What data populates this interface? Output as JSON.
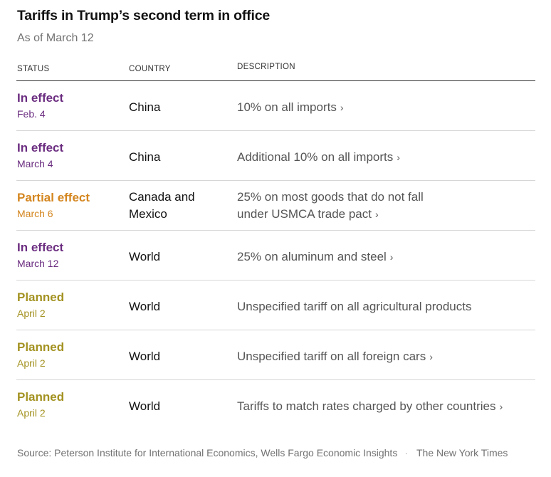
{
  "header": {
    "title": "Tariffs in Trump’s second term in office",
    "subtitle": "As of March 12"
  },
  "table": {
    "columns": [
      "STATUS",
      "COUNTRY",
      "DESCRIPTION"
    ],
    "rows": [
      {
        "status": "In effect",
        "date": "Feb. 4",
        "country": "China",
        "description": "10% on all imports",
        "chevron": "›",
        "status_color": "#6b2d80"
      },
      {
        "status": "In effect",
        "date": "March 4",
        "country": "China",
        "description": "Additional 10% on all imports",
        "chevron": "›",
        "status_color": "#6b2d80"
      },
      {
        "status": "Partial effect",
        "date": "March 6",
        "country": "Canada and Mexico",
        "description": "25% on most goods that do not fall under USMCA trade pact",
        "chevron": "›",
        "status_color": "#d4861f"
      },
      {
        "status": "In effect",
        "date": "March 12",
        "country": "World",
        "description": "25% on aluminum and steel",
        "chevron": "›",
        "status_color": "#6b2d80"
      },
      {
        "status": "Planned",
        "date": "April 2",
        "country": "World",
        "description": "Unspecified tariff on all agricultural products",
        "chevron": "",
        "status_color": "#a39221"
      },
      {
        "status": "Planned",
        "date": "April 2",
        "country": "World",
        "description": "Unspecified tariff on all foreign cars",
        "chevron": "›",
        "status_color": "#a39221"
      },
      {
        "status": "Planned",
        "date": "April 2",
        "country": "World",
        "description": "Tariffs to match rates charged by other countries",
        "chevron": "›",
        "status_color": "#a39221"
      }
    ]
  },
  "footer": {
    "source": "Source: Peterson Institute for International Economics, Wells Fargo Economic Insights",
    "separator": "·",
    "credit": "The New York Times"
  }
}
